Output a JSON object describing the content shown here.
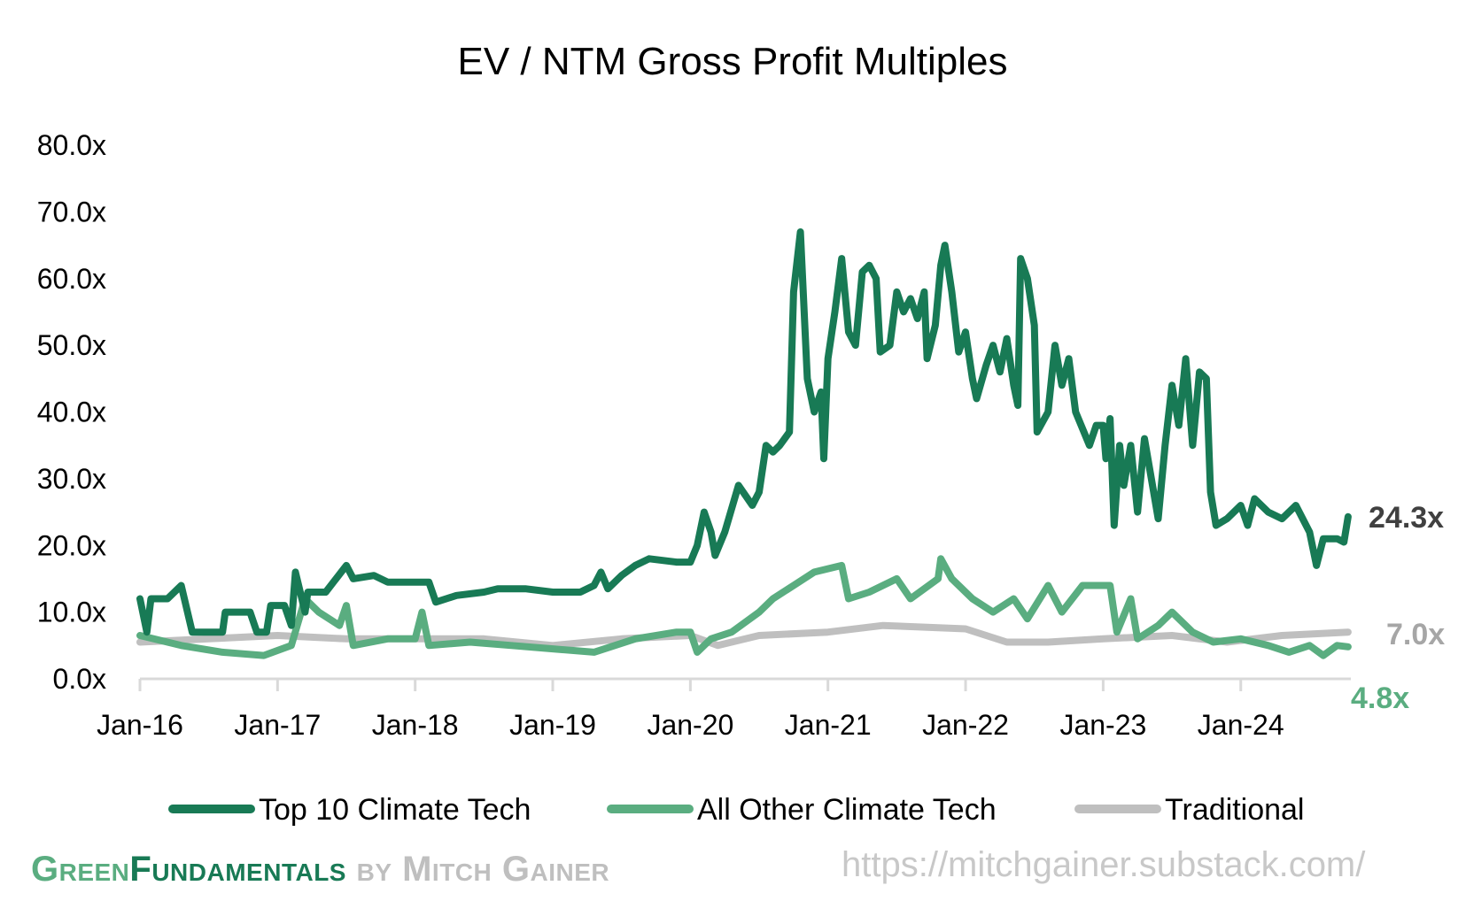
{
  "chart_data": {
    "type": "line",
    "title": "EV / NTM Gross Profit Multiples",
    "xlabel": "",
    "ylabel": "",
    "ylim": [
      0,
      80
    ],
    "xlim": [
      2016.0,
      2024.8
    ],
    "yticks": [
      "0.0x",
      "10.0x",
      "20.0x",
      "30.0x",
      "40.0x",
      "50.0x",
      "60.0x",
      "70.0x",
      "80.0x"
    ],
    "xticks": [
      "Jan-16",
      "Jan-17",
      "Jan-18",
      "Jan-19",
      "Jan-20",
      "Jan-21",
      "Jan-22",
      "Jan-23",
      "Jan-24"
    ],
    "grid": false,
    "legend": "bottom",
    "series": [
      {
        "name": "Top 10 Climate Tech",
        "color": "#187a55",
        "end_label": "24.3x",
        "label_color": "#404040",
        "points": [
          [
            2016.0,
            12
          ],
          [
            2016.05,
            7
          ],
          [
            2016.08,
            12
          ],
          [
            2016.2,
            12
          ],
          [
            2016.3,
            14
          ],
          [
            2016.38,
            7
          ],
          [
            2016.6,
            7
          ],
          [
            2016.62,
            10
          ],
          [
            2016.8,
            10
          ],
          [
            2016.85,
            7
          ],
          [
            2016.92,
            7
          ],
          [
            2016.95,
            11
          ],
          [
            2017.05,
            11
          ],
          [
            2017.1,
            8
          ],
          [
            2017.13,
            16
          ],
          [
            2017.2,
            10
          ],
          [
            2017.22,
            13
          ],
          [
            2017.35,
            13
          ],
          [
            2017.5,
            17
          ],
          [
            2017.55,
            15
          ],
          [
            2017.7,
            15.5
          ],
          [
            2017.8,
            14.5
          ],
          [
            2018.0,
            14.5
          ],
          [
            2018.1,
            14.5
          ],
          [
            2018.15,
            11.5
          ],
          [
            2018.3,
            12.5
          ],
          [
            2018.5,
            13
          ],
          [
            2018.6,
            13.5
          ],
          [
            2018.8,
            13.5
          ],
          [
            2019.0,
            13
          ],
          [
            2019.2,
            13
          ],
          [
            2019.3,
            14
          ],
          [
            2019.35,
            16
          ],
          [
            2019.4,
            13.5
          ],
          [
            2019.5,
            15.5
          ],
          [
            2019.6,
            17
          ],
          [
            2019.7,
            18
          ],
          [
            2019.9,
            17.5
          ],
          [
            2020.0,
            17.5
          ],
          [
            2020.05,
            20
          ],
          [
            2020.1,
            25
          ],
          [
            2020.15,
            22
          ],
          [
            2020.18,
            18.5
          ],
          [
            2020.25,
            22
          ],
          [
            2020.35,
            29
          ],
          [
            2020.45,
            26
          ],
          [
            2020.5,
            28
          ],
          [
            2020.55,
            35
          ],
          [
            2020.6,
            34
          ],
          [
            2020.65,
            35
          ],
          [
            2020.72,
            37
          ],
          [
            2020.75,
            58
          ],
          [
            2020.8,
            67
          ],
          [
            2020.85,
            45
          ],
          [
            2020.9,
            40
          ],
          [
            2020.95,
            43
          ],
          [
            2020.97,
            33
          ],
          [
            2021.0,
            48
          ],
          [
            2021.05,
            55
          ],
          [
            2021.1,
            63
          ],
          [
            2021.15,
            52
          ],
          [
            2021.2,
            50
          ],
          [
            2021.25,
            61
          ],
          [
            2021.3,
            62
          ],
          [
            2021.35,
            60
          ],
          [
            2021.38,
            49
          ],
          [
            2021.45,
            50
          ],
          [
            2021.5,
            58
          ],
          [
            2021.55,
            55
          ],
          [
            2021.6,
            57
          ],
          [
            2021.65,
            54
          ],
          [
            2021.7,
            58
          ],
          [
            2021.72,
            48
          ],
          [
            2021.78,
            53
          ],
          [
            2021.82,
            62
          ],
          [
            2021.85,
            65
          ],
          [
            2021.9,
            58
          ],
          [
            2021.95,
            49
          ],
          [
            2022.0,
            52
          ],
          [
            2022.05,
            45
          ],
          [
            2022.08,
            42
          ],
          [
            2022.15,
            47
          ],
          [
            2022.2,
            50
          ],
          [
            2022.25,
            46
          ],
          [
            2022.3,
            51
          ],
          [
            2022.35,
            44
          ],
          [
            2022.38,
            41
          ],
          [
            2022.4,
            63
          ],
          [
            2022.45,
            60
          ],
          [
            2022.5,
            53
          ],
          [
            2022.52,
            37
          ],
          [
            2022.6,
            40
          ],
          [
            2022.65,
            50
          ],
          [
            2022.7,
            44
          ],
          [
            2022.75,
            48
          ],
          [
            2022.8,
            40
          ],
          [
            2022.9,
            35
          ],
          [
            2022.95,
            38
          ],
          [
            2023.0,
            38
          ],
          [
            2023.02,
            33
          ],
          [
            2023.05,
            39
          ],
          [
            2023.08,
            23
          ],
          [
            2023.12,
            35
          ],
          [
            2023.15,
            29
          ],
          [
            2023.2,
            35
          ],
          [
            2023.25,
            25
          ],
          [
            2023.3,
            36
          ],
          [
            2023.35,
            30
          ],
          [
            2023.4,
            24
          ],
          [
            2023.45,
            35
          ],
          [
            2023.5,
            44
          ],
          [
            2023.55,
            38
          ],
          [
            2023.6,
            48
          ],
          [
            2023.65,
            35
          ],
          [
            2023.7,
            46
          ],
          [
            2023.75,
            45
          ],
          [
            2023.78,
            28
          ],
          [
            2023.82,
            23
          ],
          [
            2023.9,
            24
          ],
          [
            2024.0,
            26
          ],
          [
            2024.05,
            23
          ],
          [
            2024.1,
            27
          ],
          [
            2024.2,
            25
          ],
          [
            2024.3,
            24
          ],
          [
            2024.4,
            26
          ],
          [
            2024.5,
            22
          ],
          [
            2024.55,
            17
          ],
          [
            2024.6,
            21
          ],
          [
            2024.7,
            21
          ],
          [
            2024.75,
            20.5
          ],
          [
            2024.78,
            24.3
          ]
        ]
      },
      {
        "name": "All Other Climate Tech",
        "color": "#5aad80",
        "end_label": "4.8x",
        "label_color": "#5aad80",
        "points": [
          [
            2016.0,
            6.5
          ],
          [
            2016.3,
            5
          ],
          [
            2016.6,
            4
          ],
          [
            2016.9,
            3.5
          ],
          [
            2017.1,
            5
          ],
          [
            2017.2,
            12
          ],
          [
            2017.3,
            10
          ],
          [
            2017.45,
            8
          ],
          [
            2017.5,
            11
          ],
          [
            2017.55,
            5
          ],
          [
            2017.8,
            6
          ],
          [
            2018.0,
            6
          ],
          [
            2018.05,
            10
          ],
          [
            2018.1,
            5
          ],
          [
            2018.4,
            5.5
          ],
          [
            2018.7,
            5
          ],
          [
            2019.0,
            4.5
          ],
          [
            2019.3,
            4
          ],
          [
            2019.6,
            6
          ],
          [
            2019.9,
            7
          ],
          [
            2020.0,
            7
          ],
          [
            2020.05,
            4
          ],
          [
            2020.15,
            6
          ],
          [
            2020.3,
            7
          ],
          [
            2020.5,
            10
          ],
          [
            2020.6,
            12
          ],
          [
            2020.75,
            14
          ],
          [
            2020.9,
            16
          ],
          [
            2021.1,
            17
          ],
          [
            2021.15,
            12
          ],
          [
            2021.3,
            13
          ],
          [
            2021.5,
            15
          ],
          [
            2021.6,
            12
          ],
          [
            2021.8,
            15
          ],
          [
            2021.82,
            18
          ],
          [
            2021.9,
            15
          ],
          [
            2022.05,
            12
          ],
          [
            2022.2,
            10
          ],
          [
            2022.35,
            12
          ],
          [
            2022.45,
            9
          ],
          [
            2022.6,
            14
          ],
          [
            2022.7,
            10
          ],
          [
            2022.85,
            14
          ],
          [
            2023.05,
            14
          ],
          [
            2023.1,
            7
          ],
          [
            2023.2,
            12
          ],
          [
            2023.25,
            6
          ],
          [
            2023.4,
            8
          ],
          [
            2023.5,
            10
          ],
          [
            2023.65,
            7
          ],
          [
            2023.8,
            5.5
          ],
          [
            2024.0,
            6
          ],
          [
            2024.2,
            5
          ],
          [
            2024.35,
            4
          ],
          [
            2024.5,
            5
          ],
          [
            2024.6,
            3.5
          ],
          [
            2024.7,
            5
          ],
          [
            2024.78,
            4.8
          ]
        ]
      },
      {
        "name": "Traditional",
        "color": "#bfbfbf",
        "end_label": "7.0x",
        "label_color": "#a6a6a6",
        "points": [
          [
            2016.0,
            5.5
          ],
          [
            2016.5,
            6
          ],
          [
            2017.0,
            6.5
          ],
          [
            2017.5,
            6
          ],
          [
            2018.0,
            6
          ],
          [
            2018.5,
            6
          ],
          [
            2019.0,
            5
          ],
          [
            2019.5,
            6
          ],
          [
            2020.0,
            6.5
          ],
          [
            2020.2,
            5
          ],
          [
            2020.5,
            6.5
          ],
          [
            2021.0,
            7
          ],
          [
            2021.4,
            8
          ],
          [
            2022.0,
            7.5
          ],
          [
            2022.3,
            5.5
          ],
          [
            2022.6,
            5.5
          ],
          [
            2023.0,
            6
          ],
          [
            2023.5,
            6.5
          ],
          [
            2023.9,
            5.5
          ],
          [
            2024.3,
            6.5
          ],
          [
            2024.78,
            7.0
          ]
        ]
      }
    ]
  },
  "footer": {
    "brand_green": "Green",
    "brand_fund": "Fundamentals",
    "byline": "by Mitch Gainer",
    "url": "https://mitchgainer.substack.com/"
  }
}
